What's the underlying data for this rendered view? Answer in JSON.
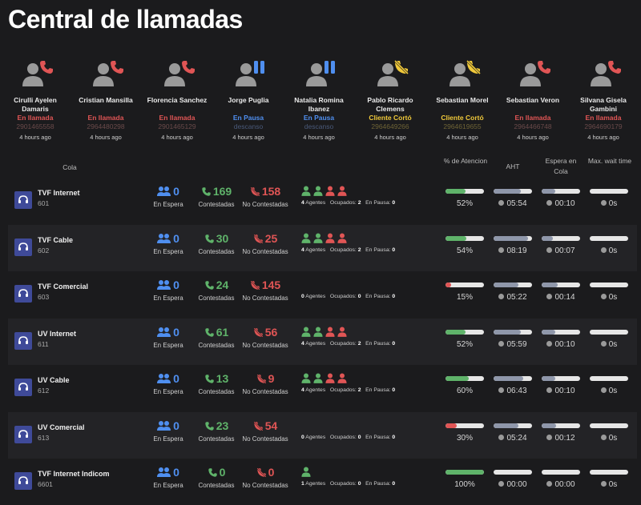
{
  "title": "Central de llamadas",
  "agents": [
    {
      "name": "Cirulli Ayelen Damaris",
      "status": "En llamada",
      "status_type": "call",
      "phone": "2901465558",
      "ago": "4 hours ago"
    },
    {
      "name": "Cristian Mansilla",
      "status": "En llamada",
      "status_type": "call",
      "phone": "2964480298",
      "ago": "4 hours ago"
    },
    {
      "name": "Florencia Sanchez",
      "status": "En llamada",
      "status_type": "call",
      "phone": "2901465129",
      "ago": "4 hours ago"
    },
    {
      "name": "Jorge Puglia",
      "status": "En Pausa",
      "status_type": "pause",
      "phone": "descanso",
      "ago": "4 hours ago"
    },
    {
      "name": "Natalia Romina Ibanez",
      "status": "En Pausa",
      "status_type": "pause",
      "phone": "descanso",
      "ago": "4 hours ago"
    },
    {
      "name": "Pablo Ricardo Clemens",
      "status": "Cliente Cortó",
      "status_type": "hang",
      "phone": "2964649266",
      "ago": "4 hours ago"
    },
    {
      "name": "Sebastian Morel",
      "status": "Cliente Cortó",
      "status_type": "hang",
      "phone": "2964619655",
      "ago": "4 hours ago"
    },
    {
      "name": "Sebastian Veron",
      "status": "En llamada",
      "status_type": "call",
      "phone": "2964466748",
      "ago": "4 hours ago"
    },
    {
      "name": "Silvana Gisela Gambini",
      "status": "En llamada",
      "status_type": "call",
      "phone": "2964690179",
      "ago": "4 hours ago"
    }
  ],
  "headers": {
    "cola": "Cola",
    "atencion": "% de Atencion",
    "aht": "AHT",
    "espera_cola": "Espera en Cola",
    "max_wait": "Max. wait time"
  },
  "labels": {
    "en_espera": "En Espera",
    "contestadas": "Contestadas",
    "no_contestadas": "No Contestadas",
    "agentes": "Agentes",
    "ocupados": "Ocupados:",
    "en_pausa": "En Pausa:"
  },
  "colors": {
    "green": "#5fb36a",
    "red": "#e05555",
    "blue": "#4f8ff0",
    "yellow": "#f0c93a",
    "bar_gray": "#8f97aa",
    "queue_icon": "#3f4a99"
  },
  "queues": [
    {
      "name": "TVF Internet",
      "number": "601",
      "en_espera": "0",
      "contestadas": "169",
      "no_contestadas": "158",
      "agents_total": "4",
      "ocupados": "2",
      "en_pausa": "0",
      "agent_icons": [
        "green",
        "green",
        "red",
        "red"
      ],
      "atencion": "52%",
      "atencion_level": 0.52,
      "aht": "05:54",
      "aht_level": 0.7,
      "espera": "00:10",
      "espera_level": 0.35,
      "max_wait": "0s",
      "max_level": 0
    },
    {
      "name": "TVF Cable",
      "number": "602",
      "en_espera": "0",
      "contestadas": "30",
      "no_contestadas": "25",
      "agents_total": "4",
      "ocupados": "2",
      "en_pausa": "0",
      "agent_icons": [
        "green",
        "green",
        "red",
        "red"
      ],
      "atencion": "54%",
      "atencion_level": 0.54,
      "aht": "08:19",
      "aht_level": 0.9,
      "espera": "00:07",
      "espera_level": 0.3,
      "max_wait": "0s",
      "max_level": 0
    },
    {
      "name": "TVF Comercial",
      "number": "603",
      "en_espera": "0",
      "contestadas": "24",
      "no_contestadas": "145",
      "agents_total": "0",
      "ocupados": "0",
      "en_pausa": "0",
      "agent_icons": [],
      "atencion": "15%",
      "atencion_level": 0.15,
      "aht": "05:22",
      "aht_level": 0.65,
      "espera": "00:14",
      "espera_level": 0.42,
      "max_wait": "0s",
      "max_level": 0
    },
    {
      "name": "UV Internet",
      "number": "611",
      "en_espera": "0",
      "contestadas": "61",
      "no_contestadas": "56",
      "agents_total": "4",
      "ocupados": "2",
      "en_pausa": "0",
      "agent_icons": [
        "green",
        "green",
        "red",
        "red"
      ],
      "atencion": "52%",
      "atencion_level": 0.52,
      "aht": "05:59",
      "aht_level": 0.7,
      "espera": "00:10",
      "espera_level": 0.35,
      "max_wait": "0s",
      "max_level": 0
    },
    {
      "name": "UV Cable",
      "number": "612",
      "en_espera": "0",
      "contestadas": "13",
      "no_contestadas": "9",
      "agents_total": "4",
      "ocupados": "2",
      "en_pausa": "0",
      "agent_icons": [
        "green",
        "green",
        "red",
        "red"
      ],
      "atencion": "60%",
      "atencion_level": 0.6,
      "aht": "06:43",
      "aht_level": 0.78,
      "espera": "00:10",
      "espera_level": 0.35,
      "max_wait": "0s",
      "max_level": 0
    },
    {
      "name": "UV Comercial",
      "number": "613",
      "en_espera": "0",
      "contestadas": "23",
      "no_contestadas": "54",
      "agents_total": "0",
      "ocupados": "0",
      "en_pausa": "0",
      "agent_icons": [],
      "atencion": "30%",
      "atencion_level": 0.3,
      "aht": "05:24",
      "aht_level": 0.65,
      "espera": "00:12",
      "espera_level": 0.38,
      "max_wait": "0s",
      "max_level": 0
    },
    {
      "name": "TVF Internet Indicom",
      "number": "6601",
      "en_espera": "0",
      "contestadas": "0",
      "no_contestadas": "0",
      "agents_total": "1",
      "ocupados": "0",
      "en_pausa": "0",
      "agent_icons": [
        "green"
      ],
      "atencion": "100%",
      "atencion_level": 1.0,
      "aht": "00:00",
      "aht_level": 0,
      "espera": "00:00",
      "espera_level": 0,
      "max_wait": "0s",
      "max_level": 0
    }
  ]
}
